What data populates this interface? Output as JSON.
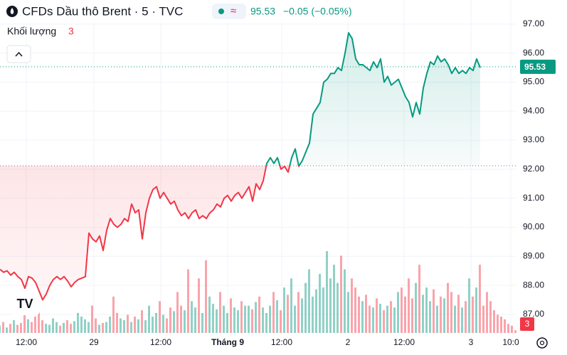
{
  "chart_data": {
    "type": "baseline-line",
    "title": "CFDs Dầu thô Brent · 5 · TVC",
    "last_price": 95.53,
    "last_price_label": "95.53",
    "change_label": "−0.05 (−0.05%)",
    "baseline": 92.12,
    "up_color": "#089981",
    "down_color": "#f23645",
    "ylim": [
      86.36,
      97.83
    ],
    "xlim": [
      0,
      145
    ],
    "yticks": [
      {
        "value": 87,
        "label": "87.00"
      },
      {
        "value": 88,
        "label": "88.00"
      },
      {
        "value": 89,
        "label": "89.00"
      },
      {
        "value": 90,
        "label": "90.00"
      },
      {
        "value": 91,
        "label": "91.00"
      },
      {
        "value": 92,
        "label": "92.00"
      },
      {
        "value": 93,
        "label": "93.00"
      },
      {
        "value": 94,
        "label": "94.00"
      },
      {
        "value": 95,
        "label": "95.00"
      },
      {
        "value": 96,
        "label": "96.00"
      },
      {
        "value": 97,
        "label": "97.00"
      }
    ],
    "xticks": [
      {
        "value": 7.4,
        "label": "12:00"
      },
      {
        "value": 26.4,
        "label": "29"
      },
      {
        "value": 45.2,
        "label": "12:00"
      },
      {
        "value": 64,
        "label": "Tháng 9"
      },
      {
        "value": 79.2,
        "label": "12:00"
      },
      {
        "value": 97.8,
        "label": "2"
      },
      {
        "value": 113.6,
        "label": "12:00"
      },
      {
        "value": 132.4,
        "label": "3"
      },
      {
        "value": 143.6,
        "label": "10:0"
      }
    ],
    "grid": true,
    "series": [
      {
        "name": "CFDs Dầu thô Brent",
        "values": [
          88.55,
          88.45,
          88.5,
          88.35,
          88.45,
          88.3,
          88.2,
          87.9,
          88.3,
          88.25,
          88.1,
          87.8,
          87.5,
          87.7,
          88.0,
          88.2,
          88.3,
          88.2,
          88.3,
          88.15,
          87.95,
          88.1,
          88.2,
          88.25,
          88.3,
          89.8,
          89.6,
          89.5,
          89.7,
          89.2,
          89.9,
          90.3,
          90.1,
          90.0,
          90.1,
          90.3,
          90.2,
          90.8,
          90.5,
          90.6,
          89.6,
          90.5,
          91.0,
          91.3,
          91.4,
          91.0,
          91.2,
          91.0,
          90.8,
          90.9,
          90.6,
          90.4,
          90.5,
          90.3,
          90.5,
          90.6,
          90.3,
          90.4,
          90.3,
          90.5,
          90.6,
          90.8,
          90.7,
          91.0,
          91.1,
          90.9,
          91.1,
          91.2,
          91.0,
          91.2,
          91.4,
          90.9,
          91.5,
          91.3,
          91.6,
          92.2,
          92.4,
          92.2,
          92.4,
          92.0,
          92.1,
          91.9,
          92.4,
          92.7,
          92.1,
          92.3,
          92.6,
          92.9,
          93.9,
          94.1,
          94.3,
          95.0,
          95.1,
          95.3,
          95.3,
          95.5,
          95.4,
          96.0,
          96.7,
          96.5,
          95.8,
          95.6,
          95.6,
          95.5,
          95.4,
          95.7,
          95.5,
          95.8,
          95.0,
          95.2,
          94.9,
          95.0,
          95.1,
          94.8,
          94.5,
          94.3,
          93.8,
          94.3,
          93.9,
          94.8,
          95.3,
          95.7,
          95.6,
          95.9,
          95.7,
          95.8,
          95.6,
          95.3,
          95.5,
          95.3,
          95.4,
          95.3,
          95.5,
          95.4,
          95.8,
          95.5
        ]
      },
      {
        "name": "Khối lượng",
        "last_label": "3",
        "values": [
          8,
          12,
          6,
          10,
          14,
          9,
          11,
          20,
          15,
          12,
          18,
          25,
          14,
          10,
          9,
          16,
          12,
          8,
          11,
          14,
          10,
          13,
          22,
          18,
          15,
          12,
          30,
          16,
          9,
          11,
          12,
          18,
          40,
          22,
          16,
          14,
          20,
          12,
          18,
          15,
          25,
          14,
          30,
          18,
          22,
          35,
          20,
          16,
          28,
          24,
          45,
          30,
          25,
          70,
          35,
          28,
          60,
          22,
          80,
          40,
          32,
          26,
          45,
          30,
          22,
          38,
          28,
          25,
          35,
          30,
          30,
          26,
          34,
          40,
          28,
          22,
          30,
          45,
          36,
          25,
          50,
          42,
          60,
          30,
          45,
          38,
          55,
          70,
          40,
          48,
          65,
          50,
          90,
          60,
          75,
          55,
          85,
          70,
          45,
          60,
          50,
          40,
          35,
          42,
          30,
          28,
          38,
          32,
          25,
          30,
          35,
          28,
          45,
          50,
          40,
          60,
          38,
          55,
          75,
          42,
          50,
          35,
          48,
          30,
          40,
          38,
          55,
          45,
          30,
          42,
          28,
          35,
          60,
          40,
          50,
          75,
          30,
          45,
          35,
          25,
          20,
          18,
          15,
          10,
          8,
          3
        ]
      }
    ]
  }
}
